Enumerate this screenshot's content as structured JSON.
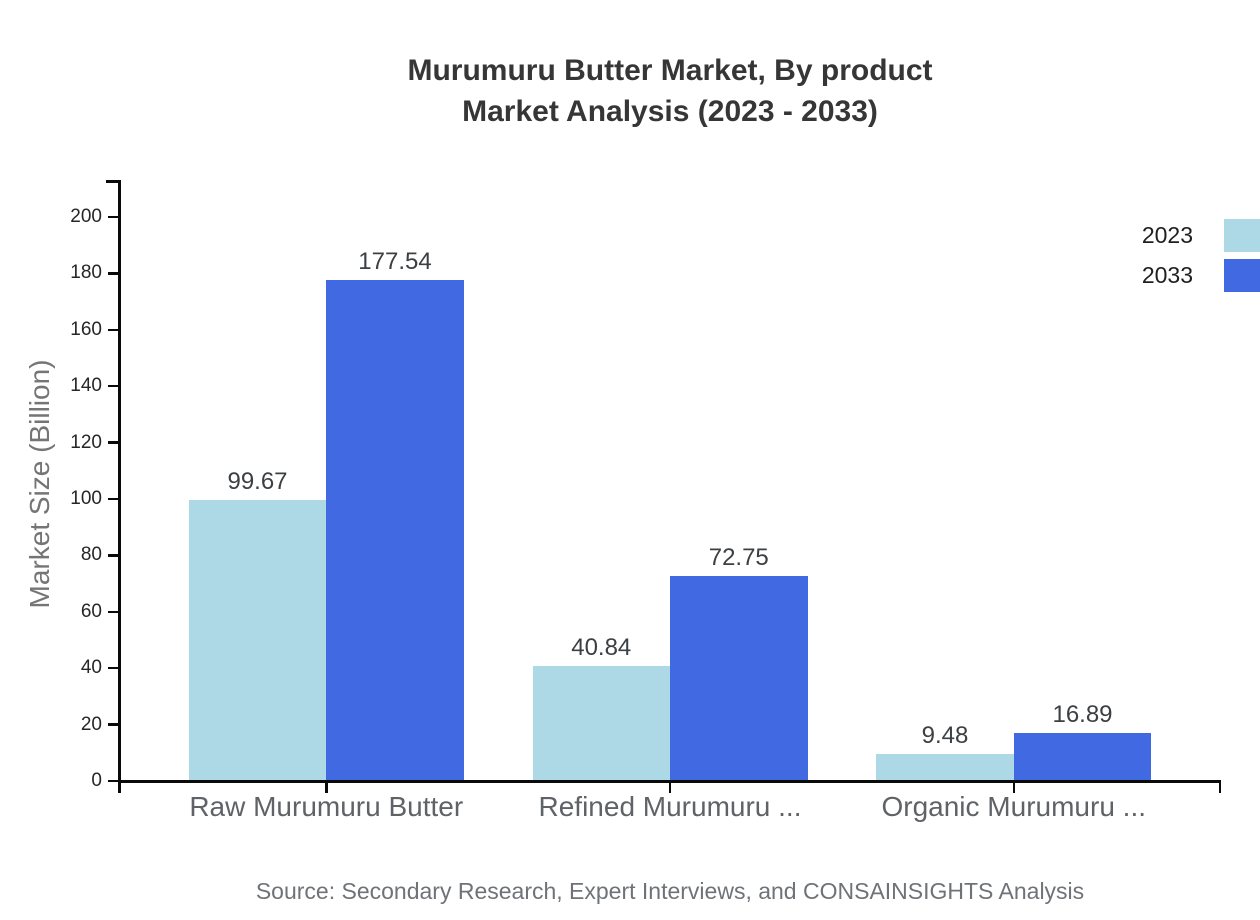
{
  "title": {
    "line1": "Murumuru Butter Market, By product",
    "line2": "Market Analysis (2023 - 2033)"
  },
  "chart_data": {
    "type": "bar",
    "categories": [
      "Raw Murumuru Butter",
      "Refined Murumuru ...",
      "Organic Murumuru ..."
    ],
    "series": [
      {
        "name": "2023",
        "color": "#ADD8E6",
        "values": [
          99.67,
          40.84,
          9.48
        ]
      },
      {
        "name": "2033",
        "color": "#4169E1",
        "values": [
          177.54,
          72.75,
          16.89
        ]
      }
    ],
    "xlabel": "",
    "ylabel": "Market Size (Billion)",
    "ylim": [
      0,
      200
    ],
    "ytick_step": 20,
    "grid": false,
    "legend_position": "top-right",
    "value_labels": true
  },
  "source": "Source: Secondary Research, Expert Interviews, and CONSAINSIGHTS Analysis"
}
